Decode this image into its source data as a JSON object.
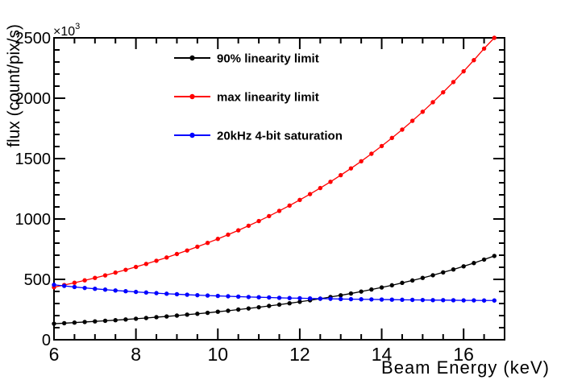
{
  "chart_data": {
    "type": "line",
    "title": "",
    "xlabel": "Beam Energy (keV)",
    "ylabel": "flux (count/pix/s)",
    "y_exponent": {
      "base": "×10",
      "sup": "3"
    },
    "xlim": [
      6,
      17
    ],
    "ylim": [
      0,
      2500
    ],
    "x_major_ticks": [
      6,
      8,
      10,
      12,
      14,
      16
    ],
    "x_minor_step": 0.5,
    "y_major_ticks": [
      0,
      500,
      1000,
      1500,
      2000,
      2500
    ],
    "y_minor_step": 100,
    "grid": false,
    "legend_position": "top-left-inside",
    "marker": "filled-circle",
    "x": [
      6.0,
      6.25,
      6.5,
      6.75,
      7.0,
      7.25,
      7.5,
      7.75,
      8.0,
      8.25,
      8.5,
      8.75,
      9.0,
      9.25,
      9.5,
      9.75,
      10.0,
      10.25,
      10.5,
      10.75,
      11.0,
      11.25,
      11.5,
      11.75,
      12.0,
      12.25,
      12.5,
      12.75,
      13.0,
      13.25,
      13.5,
      13.75,
      14.0,
      14.25,
      14.5,
      14.75,
      15.0,
      15.25,
      15.5,
      15.75,
      16.0,
      16.25,
      16.5,
      16.75
    ],
    "series": [
      {
        "name": "90% linearity limit",
        "color": "#000000",
        "values": [
          133,
          137,
          142,
          147,
          152,
          157,
          162,
          168,
          174,
          180,
          187,
          193,
          200,
          208,
          215,
          223,
          232,
          240,
          250,
          259,
          269,
          280,
          291,
          302,
          314,
          327,
          340,
          354,
          368,
          383,
          399,
          416,
          433,
          451,
          471,
          491,
          512,
          534,
          558,
          582,
          608,
          635,
          664,
          694
        ]
      },
      {
        "name": "max linearity limit",
        "color": "#ff0000",
        "values": [
          435,
          453,
          472,
          492,
          512,
          533,
          556,
          579,
          603,
          628,
          654,
          681,
          710,
          739,
          770,
          802,
          835,
          870,
          906,
          944,
          983,
          1024,
          1067,
          1111,
          1158,
          1206,
          1256,
          1308,
          1363,
          1419,
          1478,
          1540,
          1604,
          1671,
          1740,
          1813,
          1888,
          1967,
          2049,
          2134,
          2223,
          2315,
          2411,
          2500
        ]
      },
      {
        "name": "20kHz 4-bit saturation",
        "color": "#0000ff",
        "values": [
          455,
          446,
          437,
          429,
          422,
          415,
          408,
          402,
          396,
          391,
          386,
          381,
          377,
          373,
          369,
          366,
          363,
          360,
          357,
          354,
          352,
          350,
          347,
          345,
          344,
          342,
          340,
          339,
          337,
          336,
          335,
          334,
          333,
          332,
          331,
          330,
          329,
          328,
          328,
          327,
          326,
          326,
          325,
          325
        ]
      }
    ]
  }
}
